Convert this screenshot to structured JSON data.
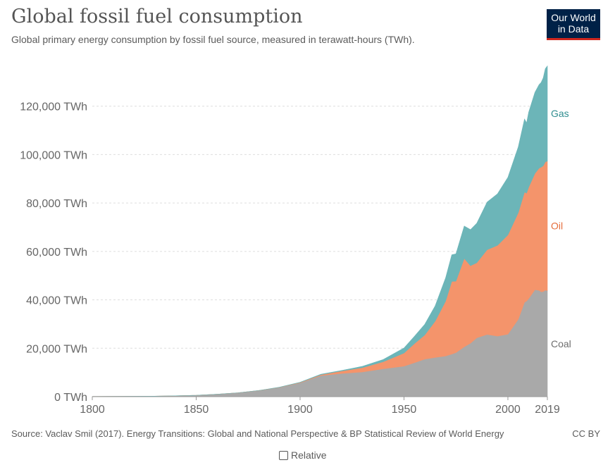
{
  "header": {
    "title": "Global fossil fuel consumption",
    "subtitle": "Global primary energy consumption by fossil fuel source, measured in terawatt-hours (TWh).",
    "logo_line1": "Our World",
    "logo_line2": "in Data",
    "logo_bg": "#002147",
    "logo_accent": "#ce261e"
  },
  "footer": {
    "source": "Source: Vaclav Smil (2017). Energy Transitions: Global and National Perspective & BP Statistical Review of World Energy",
    "license": "CC BY",
    "relative_label": "Relative"
  },
  "chart_data": {
    "type": "area",
    "stacked": true,
    "x": [
      1800,
      1810,
      1820,
      1830,
      1840,
      1850,
      1860,
      1870,
      1880,
      1890,
      1900,
      1910,
      1920,
      1930,
      1940,
      1950,
      1955,
      1960,
      1965,
      1970,
      1973,
      1975,
      1979,
      1982,
      1985,
      1990,
      1995,
      2000,
      2005,
      2008,
      2009,
      2010,
      2013,
      2015,
      2016,
      2017,
      2018,
      2019
    ],
    "series": [
      {
        "name": "Coal",
        "color": "#a9a9a9",
        "label_color": "#6e6e6e",
        "values": [
          97,
          120,
          160,
          220,
          350,
          550,
          1000,
          1600,
          2500,
          3800,
          5700,
          8700,
          9600,
          10200,
          11500,
          12600,
          14000,
          15500,
          16200,
          16800,
          17600,
          18200,
          20600,
          22100,
          24300,
          25700,
          25000,
          25800,
          32000,
          39000,
          39500,
          40500,
          44200,
          43900,
          43300,
          43400,
          44000,
          43800
        ]
      },
      {
        "name": "Oil",
        "color": "#f4946b",
        "label_color": "#e56e3c",
        "values": [
          0,
          0,
          0,
          0,
          0,
          0,
          0,
          2,
          20,
          60,
          180,
          380,
          1000,
          1800,
          2900,
          5400,
          7900,
          10000,
          15000,
          22600,
          30000,
          29500,
          36500,
          32000,
          31000,
          35000,
          37500,
          41000,
          44000,
          45500,
          44600,
          46000,
          48000,
          50500,
          51500,
          52000,
          53000,
          53500
        ]
      },
      {
        "name": "Gas",
        "color": "#6cb5b8",
        "label_color": "#2f8d8f",
        "values": [
          0,
          0,
          0,
          0,
          0,
          0,
          0,
          0,
          10,
          40,
          70,
          180,
          240,
          540,
          950,
          2100,
          3000,
          4400,
          6300,
          9600,
          11000,
          11300,
          13400,
          14900,
          16300,
          19700,
          21300,
          23800,
          27200,
          30200,
          29000,
          31000,
          33500,
          34500,
          35000,
          36300,
          38500,
          39300
        ]
      }
    ],
    "x_ticks": [
      "1800",
      "1850",
      "1900",
      "1950",
      "2000",
      "2019"
    ],
    "x_tick_values": [
      1800,
      1850,
      1900,
      1950,
      2000,
      2019
    ],
    "y_ticks": [
      "0 TWh",
      "20,000 TWh",
      "40,000 TWh",
      "60,000 TWh",
      "80,000 TWh",
      "100,000 TWh",
      "120,000 TWh"
    ],
    "y_tick_values": [
      0,
      20000,
      40000,
      60000,
      80000,
      100000,
      120000
    ],
    "xlim": [
      1800,
      2019
    ],
    "ylim": [
      0,
      140000
    ],
    "grid": "horizontal dashed",
    "legend": "right-inline"
  }
}
